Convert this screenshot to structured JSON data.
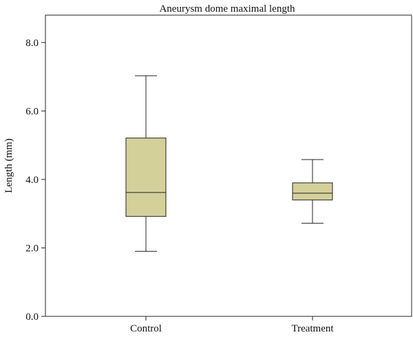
{
  "chart_data": {
    "type": "box",
    "title": "Aneurysm dome maximal length",
    "xlabel": "",
    "ylabel": "Length (mm)",
    "ylim": [
      0,
      8.8
    ],
    "yticks": [
      0,
      2,
      4,
      6,
      8
    ],
    "ytick_labels": [
      "0.0",
      "2.0",
      "4.0",
      "6.0",
      "8.0"
    ],
    "grid": false,
    "categories": [
      "Control",
      "Treatment"
    ],
    "boxes": [
      {
        "category": "Control",
        "min": 1.9,
        "q1": 2.92,
        "median": 3.62,
        "q3": 5.21,
        "max": 7.03
      },
      {
        "category": "Treatment",
        "min": 2.72,
        "q1": 3.4,
        "median": 3.6,
        "q3": 3.9,
        "max": 4.58
      }
    ],
    "colors": {
      "box_fill": "#d4d09a",
      "stroke": "#222222"
    }
  }
}
